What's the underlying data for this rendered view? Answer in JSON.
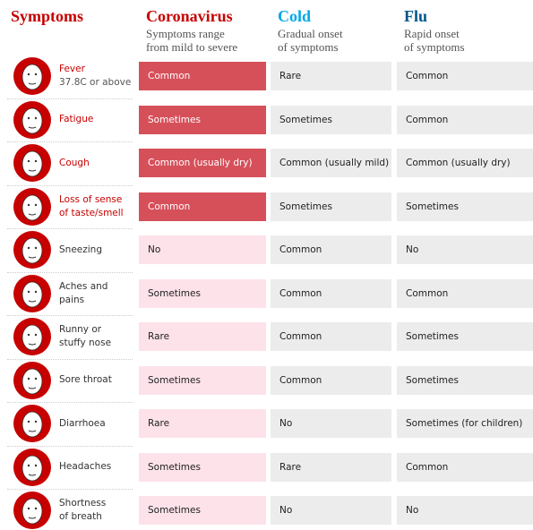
{
  "header": {
    "title": "Symptoms",
    "title_color": "#c70000",
    "columns": [
      {
        "name": "Coronavirus",
        "color": "#c70000",
        "subtitle": [
          "Symptoms range",
          "from mild to severe"
        ]
      },
      {
        "name": "Cold",
        "color": "#00a8e8",
        "subtitle": [
          "Gradual onset",
          "of symptoms"
        ]
      },
      {
        "name": "Flu",
        "color": "#005689",
        "subtitle": [
          "Rapid onset",
          "of symptoms"
        ]
      }
    ]
  },
  "rows": [
    {
      "symptom": [
        "Fever"
      ],
      "note": "37.8C or above",
      "highlight": true,
      "cells": [
        "Common",
        "Rare",
        "Common"
      ]
    },
    {
      "symptom": [
        "Fatigue"
      ],
      "highlight": true,
      "cells": [
        "Sometimes",
        "Sometimes",
        "Common"
      ]
    },
    {
      "symptom": [
        "Cough"
      ],
      "highlight": true,
      "cells": [
        "Common (usually dry)",
        "Common (usually mild)",
        "Common (usually dry)"
      ]
    },
    {
      "symptom": [
        "Loss of sense",
        "of taste/smell"
      ],
      "highlight": true,
      "cells": [
        "Common",
        "Sometimes",
        "Sometimes"
      ]
    },
    {
      "symptom": [
        "Sneezing"
      ],
      "highlight": false,
      "cells": [
        "No",
        "Common",
        "No"
      ]
    },
    {
      "symptom": [
        "Aches and",
        "pains"
      ],
      "highlight": false,
      "cells": [
        "Sometimes",
        "Common",
        "Common"
      ]
    },
    {
      "symptom": [
        "Runny or",
        "stuffy nose"
      ],
      "highlight": false,
      "cells": [
        "Rare",
        "Common",
        "Sometimes"
      ]
    },
    {
      "symptom": [
        "Sore throat"
      ],
      "highlight": false,
      "cells": [
        "Sometimes",
        "Common",
        "Sometimes"
      ]
    },
    {
      "symptom": [
        "Diarrhoea"
      ],
      "highlight": false,
      "cells": [
        "Rare",
        "No",
        "Sometimes (for children)"
      ]
    },
    {
      "symptom": [
        "Headaches"
      ],
      "highlight": false,
      "cells": [
        "Sometimes",
        "Rare",
        "Common"
      ]
    },
    {
      "symptom": [
        "Shortness",
        "of breath"
      ],
      "highlight": false,
      "cells": [
        "Sometimes",
        "No",
        "No"
      ]
    }
  ]
}
